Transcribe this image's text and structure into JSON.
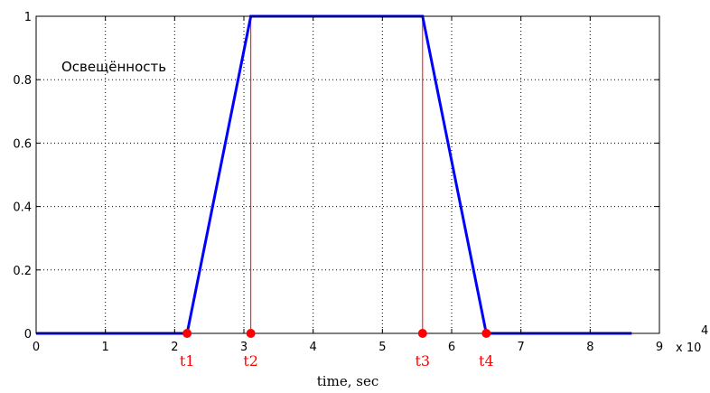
{
  "chart_data": {
    "type": "line",
    "xlabel": "time, sec",
    "ylabel": "",
    "xlim": [
      0,
      9
    ],
    "ylim": [
      0,
      1
    ],
    "x_ticks": [
      0,
      1,
      2,
      3,
      4,
      5,
      6,
      7,
      8,
      9
    ],
    "x_tick_labels": [
      "0",
      "1",
      "2",
      "3",
      "4",
      "5",
      "6",
      "7",
      "8",
      "9"
    ],
    "x_multiplier": "x 10",
    "x_multiplier_exponent": "4",
    "y_ticks": [
      0,
      0.2,
      0.4,
      0.6,
      0.8,
      1
    ],
    "y_tick_labels": [
      "0",
      "0.2",
      "0.4",
      "0.6",
      "0.8",
      "1"
    ],
    "grid": true,
    "annotation": "Освещённость",
    "series": [
      {
        "color": "#0000ff",
        "x": [
          0,
          2.18,
          3.1,
          5.58,
          6.5,
          8.6
        ],
        "y": [
          0,
          0,
          1,
          1,
          0,
          0
        ]
      }
    ],
    "markers": [
      {
        "label": "t1",
        "x": 2.18,
        "y": 0
      },
      {
        "label": "t2",
        "x": 3.1,
        "y": 0
      },
      {
        "label": "t3",
        "x": 5.58,
        "y": 0
      },
      {
        "label": "t4",
        "x": 6.5,
        "y": 0
      }
    ],
    "vertical_lines": [
      3.1,
      5.58
    ],
    "colors": {
      "line": "#0000ff",
      "marker": "#ff0000",
      "vline": "#ff0000",
      "grid": "#000000"
    }
  }
}
